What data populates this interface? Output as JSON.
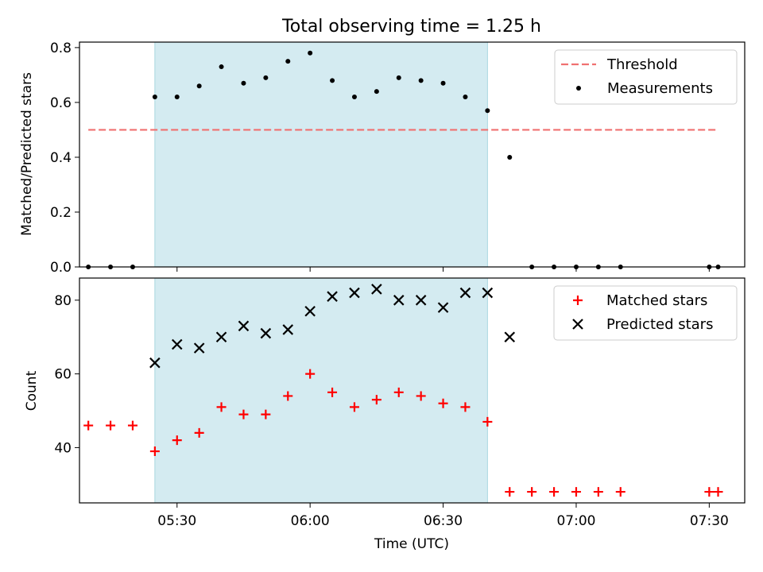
{
  "chart_data": [
    {
      "type": "scatter",
      "title": "Total observing time = 1.25 h",
      "ylabel": "Matched/Predicted stars",
      "xlabel": "",
      "xlim": [
        "05:08",
        "07:38"
      ],
      "ylim": [
        0,
        0.82
      ],
      "yticks": [
        "0.0",
        "0.2",
        "0.4",
        "0.6",
        "0.8"
      ],
      "shaded_interval": [
        "05:25",
        "06:40"
      ],
      "legend_position": "top-right",
      "threshold": {
        "name": "Threshold",
        "x_range": [
          "05:10",
          "07:32"
        ],
        "y": 0.5,
        "color": "#f07070"
      },
      "measurements": {
        "name": "Measurements",
        "color": "#000000",
        "x": [
          "05:10",
          "05:15",
          "05:20",
          "05:25",
          "05:30",
          "05:35",
          "05:40",
          "05:45",
          "05:50",
          "05:55",
          "06:00",
          "06:05",
          "06:10",
          "06:15",
          "06:20",
          "06:25",
          "06:30",
          "06:35",
          "06:40",
          "06:45",
          "06:50",
          "06:55",
          "07:00",
          "07:05",
          "07:10",
          "07:30",
          "07:32"
        ],
        "y": [
          0,
          0,
          0,
          0.62,
          0.62,
          0.66,
          0.73,
          0.67,
          0.69,
          0.75,
          0.78,
          0.68,
          0.62,
          0.64,
          0.69,
          0.68,
          0.67,
          0.62,
          0.57,
          0.4,
          0,
          0,
          0,
          0,
          0,
          0,
          0
        ]
      }
    },
    {
      "type": "scatter",
      "title": "",
      "ylabel": "Count",
      "xlabel": "Time (UTC)",
      "xlim": [
        "05:08",
        "07:38"
      ],
      "ylim": [
        25,
        86
      ],
      "yticks": [
        "40",
        "60",
        "80"
      ],
      "xticks": [
        "05:30",
        "06:00",
        "06:30",
        "07:00",
        "07:30"
      ],
      "shaded_interval": [
        "05:25",
        "06:40"
      ],
      "legend_position": "top-right",
      "series": [
        {
          "name": "Matched stars",
          "marker": "+",
          "color": "#ff0000",
          "x": [
            "05:10",
            "05:15",
            "05:20",
            "05:25",
            "05:30",
            "05:35",
            "05:40",
            "05:45",
            "05:50",
            "05:55",
            "06:00",
            "06:05",
            "06:10",
            "06:15",
            "06:20",
            "06:25",
            "06:30",
            "06:35",
            "06:40",
            "06:45",
            "06:50",
            "06:55",
            "07:00",
            "07:05",
            "07:10",
            "07:30",
            "07:32"
          ],
          "y": [
            46,
            46,
            46,
            39,
            42,
            44,
            51,
            49,
            49,
            54,
            60,
            55,
            51,
            53,
            55,
            54,
            52,
            51,
            47,
            28,
            28,
            28,
            28,
            28,
            28,
            28,
            28
          ]
        },
        {
          "name": "Predicted stars",
          "marker": "x",
          "color": "#000000",
          "x": [
            "05:25",
            "05:30",
            "05:35",
            "05:40",
            "05:45",
            "05:50",
            "05:55",
            "06:00",
            "06:05",
            "06:10",
            "06:15",
            "06:20",
            "06:25",
            "06:30",
            "06:35",
            "06:40",
            "06:45"
          ],
          "y": [
            63,
            68,
            67,
            70,
            73,
            71,
            72,
            77,
            81,
            82,
            83,
            80,
            80,
            78,
            82,
            82,
            70
          ]
        }
      ]
    }
  ],
  "colors": {
    "shade": "#d4ebf1",
    "shade_edge": "#a8d6e0"
  }
}
